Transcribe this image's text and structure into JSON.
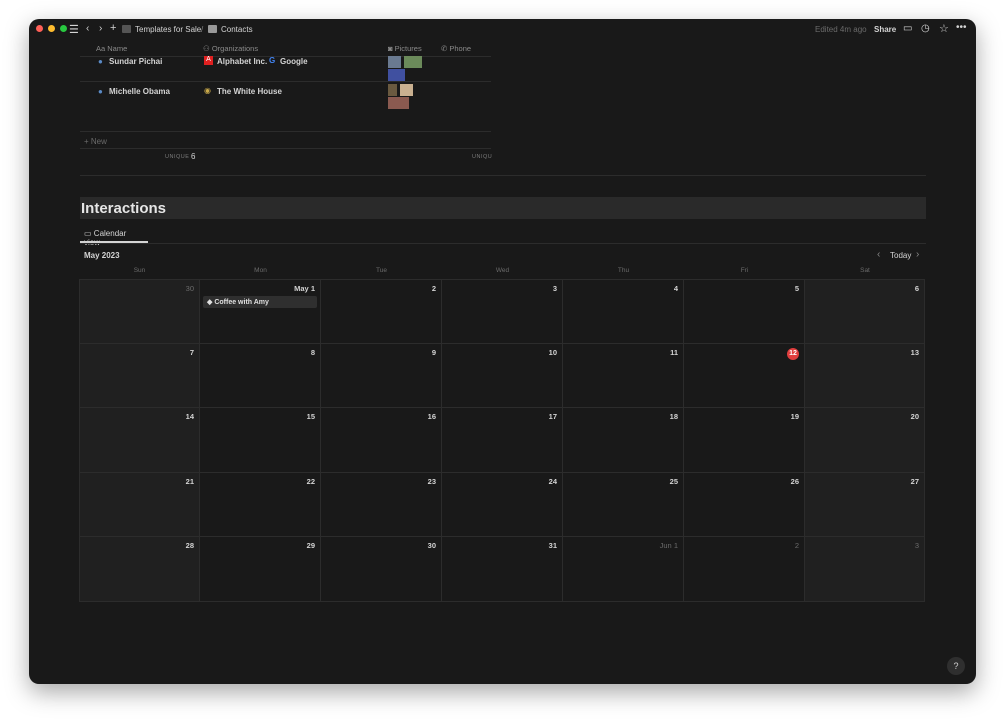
{
  "titlebar": {
    "breadcrumb": [
      {
        "label": "Templates for Sale",
        "icon": "template-icon"
      },
      {
        "label": "Contacts",
        "icon": "contacts-icon"
      }
    ],
    "separator": "/",
    "edited": "Edited 4m ago",
    "share": "Share"
  },
  "table": {
    "columns": [
      "Name",
      "Organizations",
      "Pictures",
      "Phone"
    ],
    "rows": [
      {
        "name": "Sundar Pichai",
        "orgs": [
          "Alphabet Inc.",
          "Google"
        ]
      },
      {
        "name": "Michelle Obama",
        "orgs": [
          "The White House"
        ]
      }
    ],
    "new_label": "New",
    "footer_label": "UNIQUE",
    "footer_count": "6",
    "footer_label2": "UNIQU"
  },
  "section": {
    "title": "Interactions",
    "view_tab": "Calendar view"
  },
  "calendar": {
    "month": "May 2023",
    "today_label": "Today",
    "today_day": "12",
    "weekdays": [
      "Sun",
      "Mon",
      "Tue",
      "Wed",
      "Thu",
      "Fri",
      "Sat"
    ],
    "weeks": [
      [
        "30",
        "May 1",
        "2",
        "3",
        "4",
        "5",
        "6"
      ],
      [
        "7",
        "8",
        "9",
        "10",
        "11",
        "12",
        "13"
      ],
      [
        "14",
        "15",
        "16",
        "17",
        "18",
        "19",
        "20"
      ],
      [
        "21",
        "22",
        "23",
        "24",
        "25",
        "26",
        "27"
      ],
      [
        "28",
        "29",
        "30",
        "31",
        "Jun 1",
        "2",
        "3"
      ]
    ],
    "events": [
      {
        "day": "May 1",
        "title": "Coffee with Amy"
      }
    ]
  },
  "colors": {
    "background": "#191919",
    "today": "#e03e3e"
  },
  "help": "?"
}
